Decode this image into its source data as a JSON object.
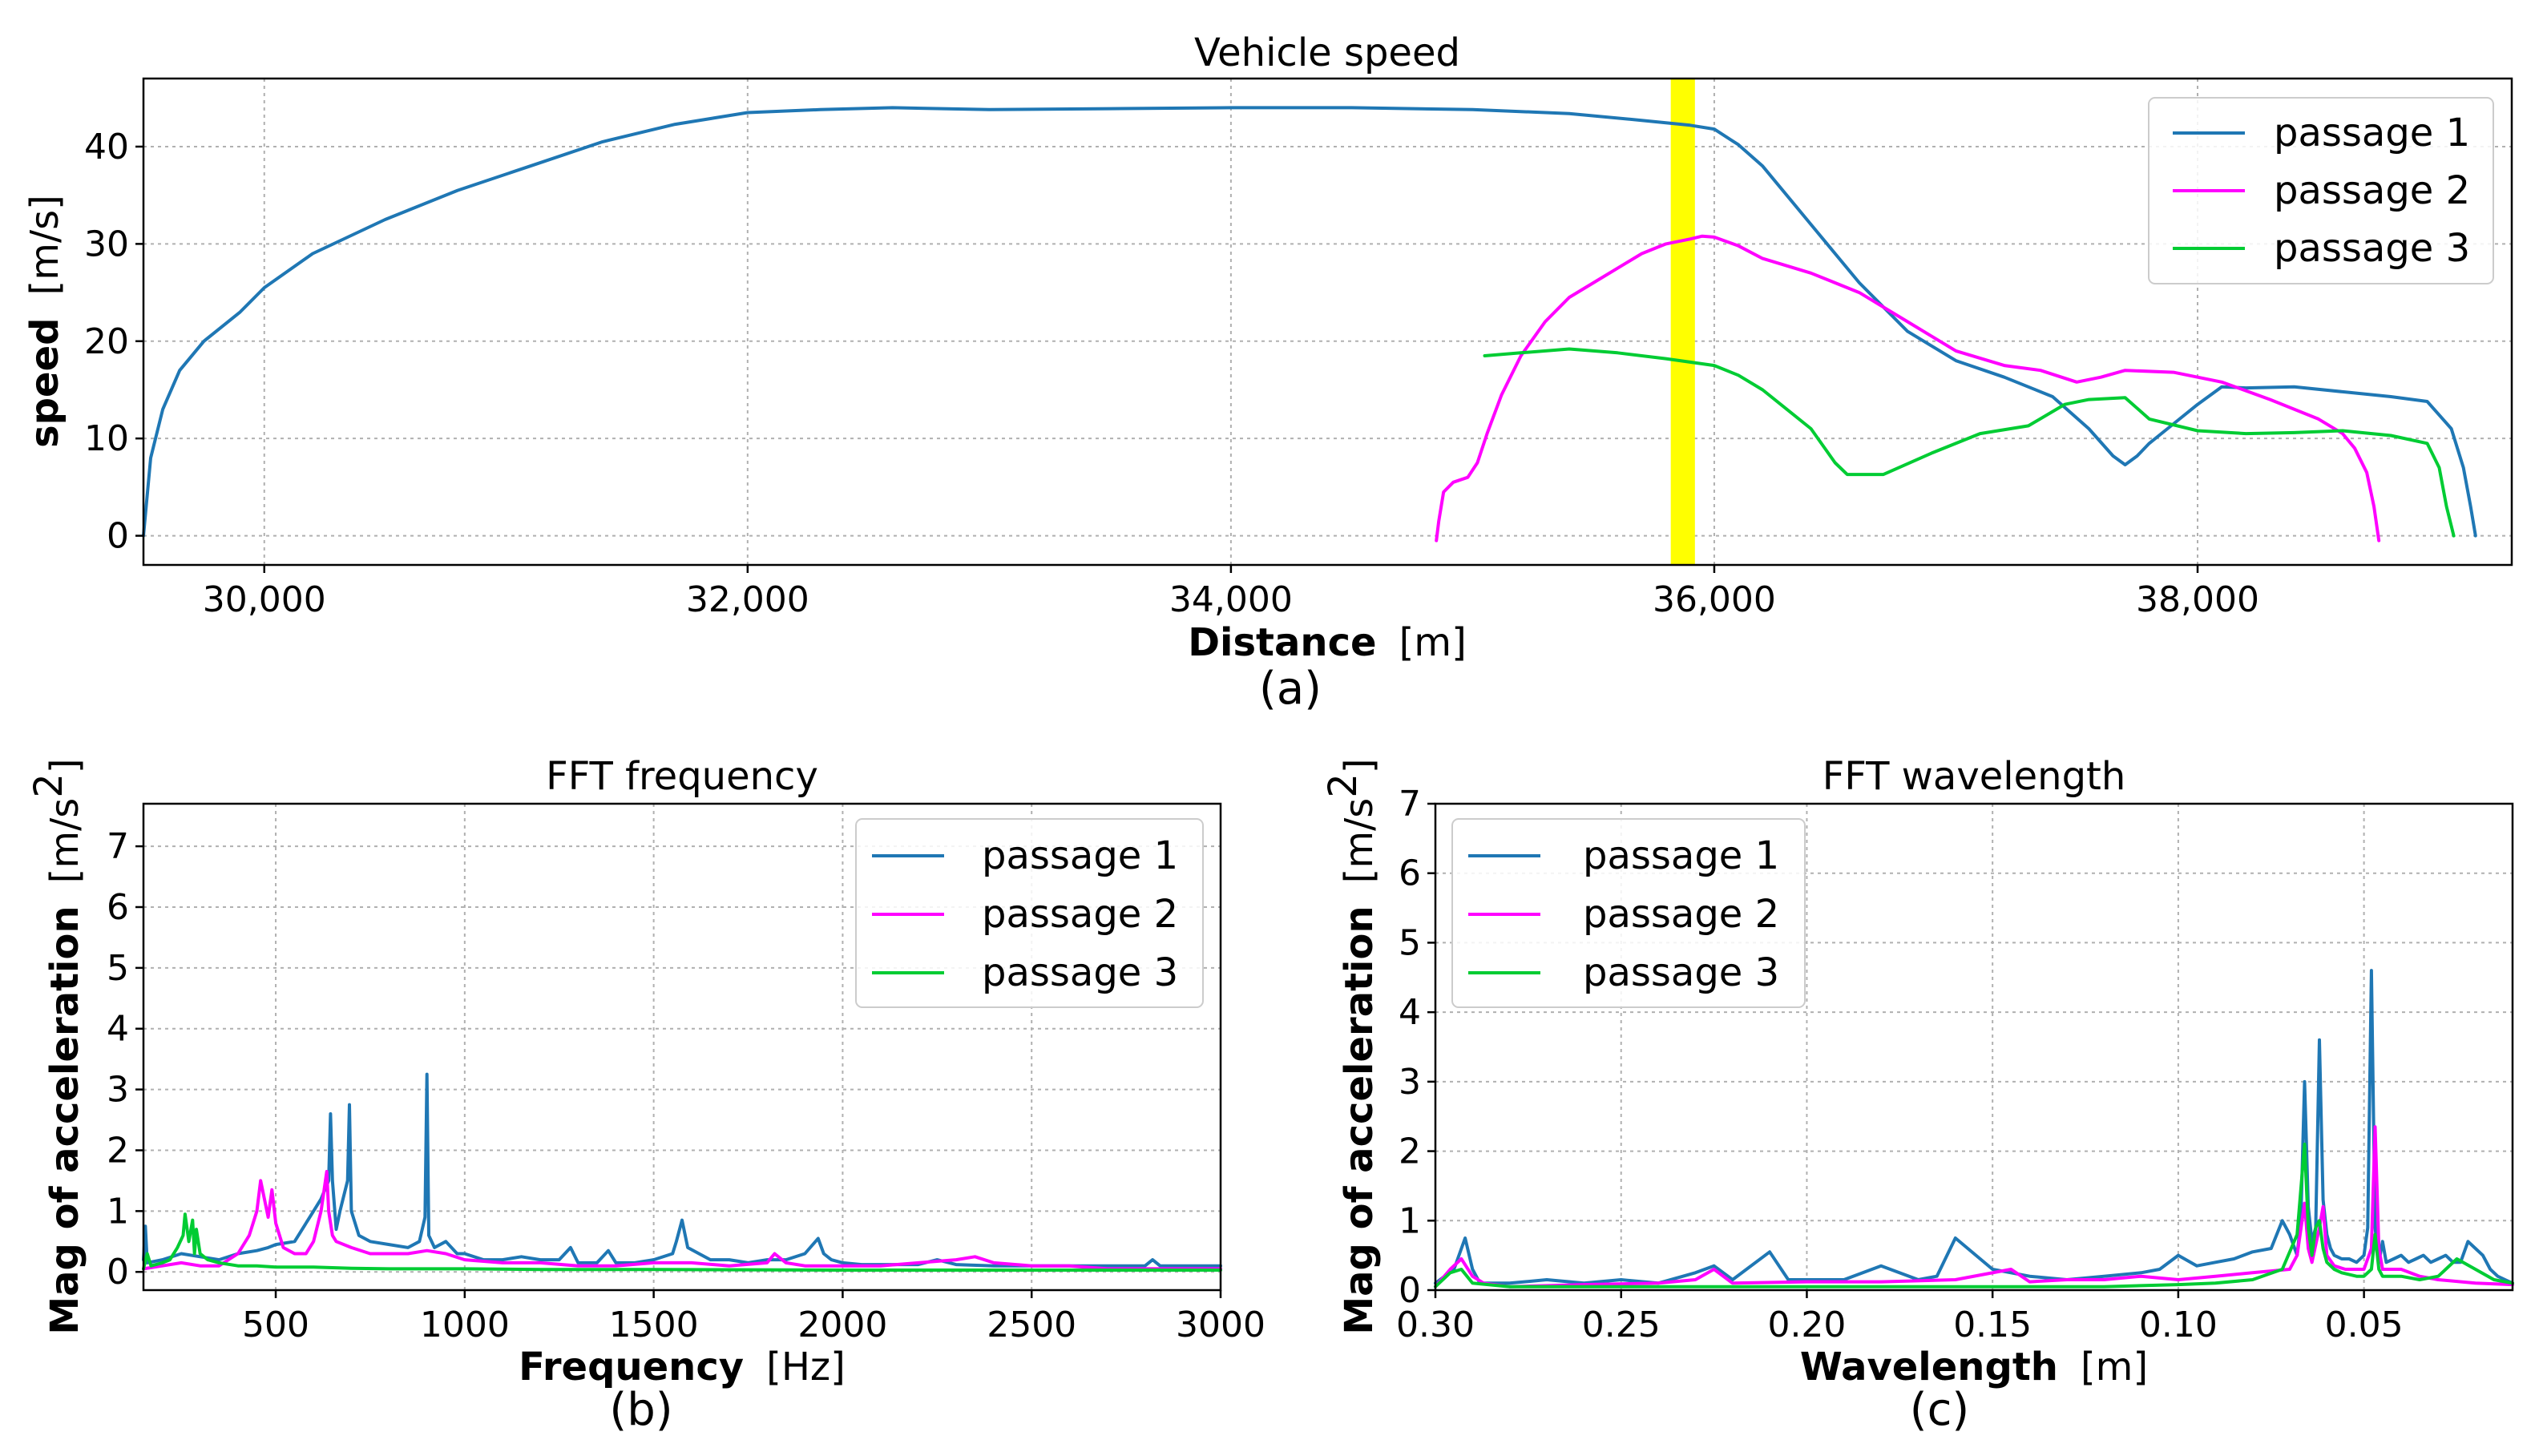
{
  "colors": {
    "passage_1": "#1f77b4",
    "passage_2": "#ff00ff",
    "passage_3": "#00cc33",
    "highlight": "#ffff00"
  },
  "captions": [
    "(a)",
    "(b)",
    "(c)"
  ],
  "chart_data": [
    {
      "type": "line",
      "title": "Vehicle speed",
      "xlabel": "Distance",
      "xlabel_unit": "[m]",
      "ylabel": "speed",
      "ylabel_unit": "[m/s]",
      "xlim": [
        29500,
        39300
      ],
      "ylim": [
        -3,
        47
      ],
      "xticks": [
        30000,
        32000,
        34000,
        36000,
        38000
      ],
      "xtick_labels": [
        "30,000",
        "32,000",
        "34,000",
        "36,000",
        "38,000"
      ],
      "yticks": [
        0,
        10,
        20,
        30,
        40
      ],
      "ytick_labels": [
        "0",
        "10",
        "20",
        "30",
        "40"
      ],
      "grid": true,
      "legend_position": "top-right",
      "highlight_span": [
        35820,
        35920
      ],
      "series": [
        {
          "name": "passage 1",
          "color": "#1f77b4",
          "x": [
            29500,
            29530,
            29580,
            29650,
            29750,
            29900,
            30000,
            30200,
            30500,
            30800,
            31100,
            31400,
            31700,
            32000,
            32300,
            32600,
            33000,
            33500,
            34000,
            34500,
            35000,
            35400,
            35700,
            35900,
            36000,
            36100,
            36200,
            36400,
            36600,
            36800,
            37000,
            37200,
            37400,
            37550,
            37650,
            37700,
            37750,
            37800,
            37900,
            38000,
            38100,
            38200,
            38400,
            38600,
            38800,
            38950,
            39050,
            39100,
            39130,
            39150
          ],
          "y": [
            0,
            8,
            13,
            17,
            20,
            23,
            25.5,
            29,
            32.5,
            35.5,
            38,
            40.5,
            42.3,
            43.5,
            43.8,
            44,
            43.8,
            43.9,
            44,
            44,
            43.8,
            43.4,
            42.7,
            42.2,
            41.8,
            40.2,
            38,
            32,
            26,
            21,
            18,
            16.3,
            14.3,
            11,
            8.2,
            7.3,
            8.2,
            9.5,
            11.5,
            13.5,
            15.3,
            15.2,
            15.3,
            14.8,
            14.3,
            13.8,
            11,
            7,
            3,
            0
          ]
        },
        {
          "name": "passage 2",
          "color": "#ff00ff",
          "x": [
            34850,
            34860,
            34880,
            34920,
            34980,
            35020,
            35060,
            35120,
            35200,
            35300,
            35400,
            35500,
            35600,
            35700,
            35800,
            35900,
            35950,
            36000,
            36100,
            36200,
            36400,
            36600,
            36800,
            37000,
            37200,
            37350,
            37500,
            37600,
            37700,
            37900,
            38100,
            38300,
            38500,
            38600,
            38650,
            38700,
            38730,
            38750
          ],
          "y": [
            -0.5,
            1.5,
            4.5,
            5.5,
            6,
            7.5,
            10.5,
            14.5,
            18.5,
            22,
            24.5,
            26,
            27.5,
            29,
            30,
            30.5,
            30.8,
            30.7,
            29.8,
            28.5,
            27,
            25,
            22,
            19,
            17.5,
            17,
            15.8,
            16.3,
            17,
            16.8,
            15.8,
            14,
            12,
            10.5,
            9,
            6.5,
            3,
            -0.5
          ]
        },
        {
          "name": "passage 3",
          "color": "#00cc33",
          "x": [
            35050,
            35200,
            35400,
            35600,
            35800,
            36000,
            36100,
            36200,
            36400,
            36500,
            36550,
            36600,
            36700,
            36900,
            37100,
            37300,
            37450,
            37550,
            37700,
            37800,
            38000,
            38200,
            38400,
            38600,
            38800,
            38950,
            39000,
            39030,
            39050,
            39060
          ],
          "y": [
            18.5,
            18.8,
            19.2,
            18.8,
            18.2,
            17.5,
            16.5,
            15,
            11,
            7.5,
            6.3,
            6.3,
            6.3,
            8.5,
            10.5,
            11.3,
            13.5,
            14,
            14.2,
            12,
            10.8,
            10.5,
            10.6,
            10.8,
            10.3,
            9.5,
            7,
            3,
            1,
            0
          ]
        }
      ]
    },
    {
      "type": "line",
      "title": "FFT frequency",
      "xlabel": "Frequency",
      "xlabel_unit": "[Hz]",
      "ylabel": "Mag of acceleration",
      "ylabel_unit": "[m/s",
      "ylabel_unit_sup": "2",
      "ylabel_unit_close": "]",
      "xlim": [
        150,
        3000
      ],
      "ylim": [
        -0.3,
        7.7
      ],
      "xticks": [
        500,
        1000,
        1500,
        2000,
        2500,
        3000
      ],
      "xtick_labels": [
        "500",
        "1000",
        "1500",
        "2000",
        "2500",
        "3000"
      ],
      "yticks": [
        0,
        1,
        2,
        3,
        4,
        5,
        6,
        7
      ],
      "ytick_labels": [
        "0",
        "1",
        "2",
        "3",
        "4",
        "5",
        "6",
        "7"
      ],
      "grid": true,
      "legend_position": "top-right",
      "series": [
        {
          "name": "passage 1",
          "color": "#1f77b4",
          "x": [
            150,
            155,
            160,
            200,
            250,
            300,
            350,
            400,
            450,
            480,
            500,
            550,
            580,
            600,
            620,
            640,
            645,
            650,
            660,
            670,
            690,
            695,
            700,
            720,
            750,
            800,
            850,
            880,
            895,
            900,
            905,
            920,
            950,
            980,
            1000,
            1050,
            1100,
            1150,
            1200,
            1250,
            1280,
            1300,
            1350,
            1380,
            1400,
            1450,
            1500,
            1550,
            1560,
            1575,
            1590,
            1620,
            1650,
            1700,
            1750,
            1800,
            1850,
            1900,
            1935,
            1950,
            1970,
            2000,
            2050,
            2100,
            2200,
            2250,
            2300,
            2400,
            2500,
            2600,
            2700,
            2800,
            2820,
            2840,
            2900,
            3000
          ],
          "y": [
            0.2,
            0.75,
            0.15,
            0.2,
            0.3,
            0.25,
            0.2,
            0.3,
            0.35,
            0.4,
            0.45,
            0.5,
            0.8,
            1.0,
            1.2,
            1.5,
            2.6,
            1.5,
            0.7,
            1.0,
            1.5,
            2.75,
            1.0,
            0.6,
            0.5,
            0.45,
            0.4,
            0.5,
            0.9,
            3.25,
            0.6,
            0.4,
            0.5,
            0.3,
            0.3,
            0.2,
            0.2,
            0.25,
            0.2,
            0.2,
            0.4,
            0.15,
            0.15,
            0.35,
            0.15,
            0.15,
            0.2,
            0.3,
            0.5,
            0.85,
            0.4,
            0.3,
            0.2,
            0.2,
            0.15,
            0.2,
            0.2,
            0.3,
            0.55,
            0.3,
            0.2,
            0.15,
            0.12,
            0.12,
            0.12,
            0.2,
            0.12,
            0.1,
            0.1,
            0.1,
            0.1,
            0.1,
            0.2,
            0.1,
            0.1,
            0.1
          ]
        },
        {
          "name": "passage 2",
          "color": "#ff00ff",
          "x": [
            150,
            200,
            250,
            300,
            350,
            400,
            430,
            450,
            460,
            470,
            480,
            490,
            500,
            520,
            550,
            580,
            600,
            620,
            635,
            640,
            650,
            660,
            700,
            750,
            800,
            850,
            900,
            950,
            1000,
            1100,
            1200,
            1300,
            1400,
            1500,
            1600,
            1700,
            1800,
            1820,
            1850,
            1900,
            2000,
            2100,
            2200,
            2300,
            2350,
            2400,
            2500,
            2600,
            2700,
            2800,
            2900,
            3000
          ],
          "y": [
            0.05,
            0.1,
            0.15,
            0.1,
            0.1,
            0.3,
            0.6,
            1.0,
            1.5,
            1.2,
            0.9,
            1.35,
            0.8,
            0.4,
            0.3,
            0.3,
            0.5,
            1.0,
            1.65,
            1.0,
            0.6,
            0.5,
            0.4,
            0.3,
            0.3,
            0.3,
            0.35,
            0.3,
            0.2,
            0.15,
            0.15,
            0.1,
            0.1,
            0.15,
            0.15,
            0.1,
            0.15,
            0.3,
            0.15,
            0.1,
            0.1,
            0.1,
            0.15,
            0.2,
            0.25,
            0.15,
            0.1,
            0.1,
            0.05,
            0.05,
            0.05,
            0.05
          ]
        },
        {
          "name": "passage 3",
          "color": "#00cc33",
          "x": [
            150,
            160,
            170,
            200,
            220,
            240,
            255,
            260,
            270,
            280,
            285,
            290,
            300,
            320,
            350,
            400,
            450,
            500,
            600,
            700,
            800,
            900,
            1000,
            1200,
            1500,
            2000,
            2500,
            3000
          ],
          "y": [
            0.05,
            0.3,
            0.1,
            0.15,
            0.2,
            0.4,
            0.6,
            0.95,
            0.5,
            0.85,
            0.3,
            0.7,
            0.3,
            0.2,
            0.15,
            0.1,
            0.1,
            0.08,
            0.08,
            0.06,
            0.05,
            0.05,
            0.05,
            0.04,
            0.04,
            0.03,
            0.03,
            0.03
          ]
        }
      ]
    },
    {
      "type": "line",
      "title": "FFT wavelength",
      "xlabel": "Wavelength",
      "xlabel_unit": "[m]",
      "ylabel": "Mag of acceleration",
      "ylabel_unit": "[m/s",
      "ylabel_unit_sup": "2",
      "ylabel_unit_close": "]",
      "xlim": [
        0.3,
        0.01
      ],
      "ylim": [
        0,
        7
      ],
      "xticks": [
        0.3,
        0.25,
        0.2,
        0.15,
        0.1,
        0.05
      ],
      "xtick_labels": [
        "0.30",
        "0.25",
        "0.20",
        "0.15",
        "0.10",
        "0.05"
      ],
      "yticks": [
        0,
        1,
        2,
        3,
        4,
        5,
        6,
        7
      ],
      "ytick_labels": [
        "0",
        "1",
        "2",
        "3",
        "4",
        "5",
        "6",
        "7"
      ],
      "grid": true,
      "legend_position": "top-left",
      "series": [
        {
          "name": "passage 1",
          "color": "#1f77b4",
          "x": [
            0.3,
            0.295,
            0.292,
            0.29,
            0.288,
            0.28,
            0.27,
            0.26,
            0.25,
            0.24,
            0.23,
            0.225,
            0.22,
            0.21,
            0.205,
            0.2,
            0.19,
            0.18,
            0.17,
            0.165,
            0.16,
            0.15,
            0.14,
            0.13,
            0.12,
            0.11,
            0.105,
            0.1,
            0.095,
            0.09,
            0.085,
            0.08,
            0.075,
            0.072,
            0.07,
            0.068,
            0.067,
            0.066,
            0.065,
            0.064,
            0.063,
            0.062,
            0.061,
            0.06,
            0.059,
            0.058,
            0.056,
            0.054,
            0.052,
            0.05,
            0.049,
            0.048,
            0.047,
            0.046,
            0.045,
            0.044,
            0.042,
            0.04,
            0.038,
            0.036,
            0.034,
            0.032,
            0.03,
            0.028,
            0.026,
            0.024,
            0.022,
            0.02,
            0.018,
            0.016,
            0.014,
            0.012,
            0.01
          ],
          "y": [
            0.1,
            0.3,
            0.75,
            0.3,
            0.1,
            0.1,
            0.15,
            0.1,
            0.15,
            0.1,
            0.25,
            0.35,
            0.15,
            0.55,
            0.15,
            0.15,
            0.15,
            0.35,
            0.15,
            0.2,
            0.75,
            0.3,
            0.2,
            0.15,
            0.2,
            0.25,
            0.3,
            0.5,
            0.35,
            0.4,
            0.45,
            0.55,
            0.6,
            1.0,
            0.8,
            0.5,
            1.0,
            3.0,
            1.2,
            0.7,
            0.9,
            3.6,
            1.3,
            0.8,
            0.6,
            0.5,
            0.45,
            0.45,
            0.4,
            0.5,
            0.9,
            4.6,
            0.9,
            0.4,
            0.7,
            0.4,
            0.45,
            0.5,
            0.4,
            0.45,
            0.5,
            0.4,
            0.45,
            0.5,
            0.4,
            0.4,
            0.7,
            0.6,
            0.5,
            0.3,
            0.2,
            0.15,
            0.1
          ]
        },
        {
          "name": "passage 2",
          "color": "#ff00ff",
          "x": [
            0.3,
            0.296,
            0.293,
            0.29,
            0.287,
            0.28,
            0.26,
            0.24,
            0.23,
            0.225,
            0.22,
            0.2,
            0.18,
            0.16,
            0.145,
            0.14,
            0.13,
            0.12,
            0.11,
            0.1,
            0.09,
            0.08,
            0.07,
            0.068,
            0.066,
            0.065,
            0.064,
            0.062,
            0.061,
            0.06,
            0.058,
            0.055,
            0.05,
            0.048,
            0.047,
            0.046,
            0.045,
            0.04,
            0.035,
            0.03,
            0.02,
            0.01
          ],
          "y": [
            0.05,
            0.3,
            0.45,
            0.2,
            0.1,
            0.05,
            0.08,
            0.1,
            0.15,
            0.3,
            0.1,
            0.12,
            0.12,
            0.15,
            0.3,
            0.12,
            0.15,
            0.15,
            0.2,
            0.15,
            0.2,
            0.25,
            0.3,
            0.5,
            1.25,
            0.6,
            0.4,
            0.9,
            1.2,
            0.5,
            0.35,
            0.3,
            0.3,
            0.6,
            2.35,
            0.6,
            0.3,
            0.3,
            0.2,
            0.15,
            0.1,
            0.08
          ]
        },
        {
          "name": "passage 3",
          "color": "#00cc33",
          "x": [
            0.3,
            0.296,
            0.293,
            0.29,
            0.28,
            0.26,
            0.24,
            0.22,
            0.2,
            0.18,
            0.16,
            0.14,
            0.12,
            0.1,
            0.09,
            0.08,
            0.072,
            0.068,
            0.066,
            0.065,
            0.064,
            0.063,
            0.062,
            0.061,
            0.06,
            0.058,
            0.056,
            0.052,
            0.05,
            0.048,
            0.047,
            0.046,
            0.045,
            0.04,
            0.035,
            0.03,
            0.025,
            0.02,
            0.015,
            0.01
          ],
          "y": [
            0.05,
            0.25,
            0.3,
            0.1,
            0.05,
            0.05,
            0.05,
            0.05,
            0.05,
            0.05,
            0.05,
            0.05,
            0.05,
            0.08,
            0.1,
            0.15,
            0.3,
            0.8,
            2.1,
            0.9,
            0.5,
            0.9,
            1.0,
            0.6,
            0.4,
            0.3,
            0.25,
            0.2,
            0.2,
            0.3,
            0.8,
            0.3,
            0.2,
            0.2,
            0.15,
            0.2,
            0.45,
            0.3,
            0.15,
            0.1
          ]
        }
      ]
    }
  ]
}
